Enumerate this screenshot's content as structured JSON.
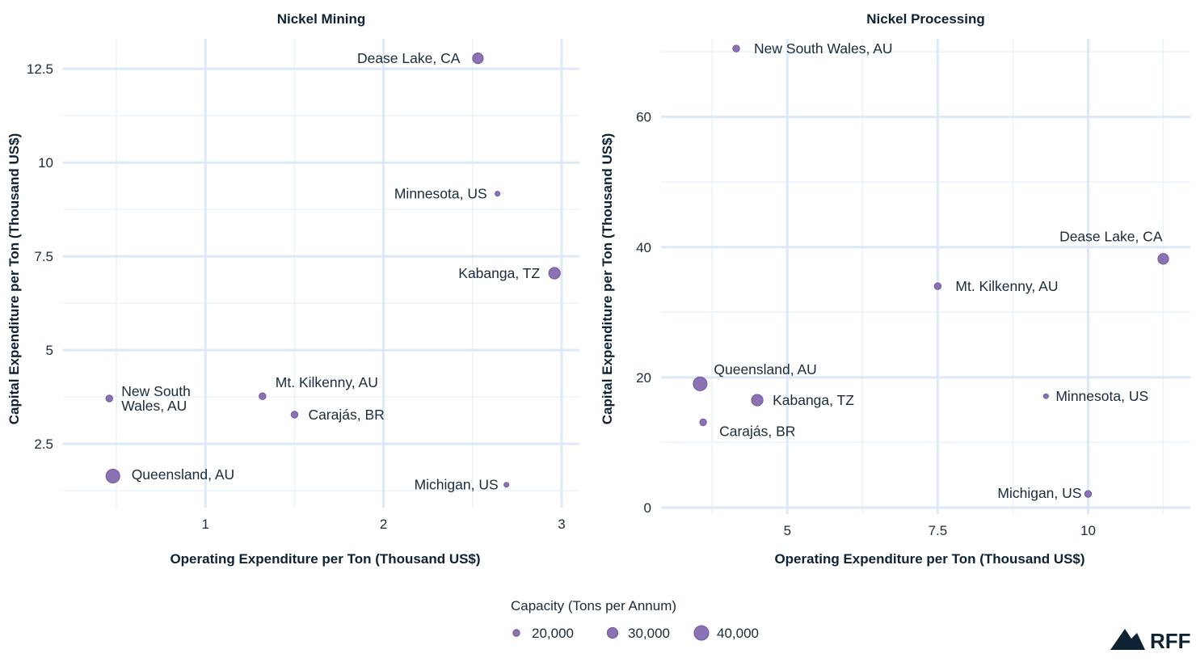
{
  "chart_data": [
    {
      "type": "scatter",
      "title": "Nickel Mining",
      "xlabel": "Operating Expenditure per Ton (Thousand US$)",
      "ylabel": "Capital Expenditure per Ton (Thousand US$)",
      "xlim": [
        0.2,
        3.1
      ],
      "ylim": [
        0.8,
        13.3
      ],
      "xticks": [
        1,
        2,
        3
      ],
      "xtick_labels": [
        "1",
        "2",
        "3"
      ],
      "yticks": [
        2.5,
        5,
        7.5,
        10,
        12.5
      ],
      "ytick_labels": [
        "2.5",
        "5",
        "7.5",
        "10",
        "12.5"
      ],
      "grid": true,
      "points": [
        {
          "label": [
            "Dease Lake, CA"
          ],
          "x": 2.53,
          "y": 12.78,
          "capacity": 30000
        },
        {
          "label": [
            "Minnesota, US"
          ],
          "x": 2.64,
          "y": 9.17,
          "capacity": 15000
        },
        {
          "label": [
            "Kabanga, TZ"
          ],
          "x": 2.96,
          "y": 7.05,
          "capacity": 32000
        },
        {
          "label": [
            "New South",
            "Wales, AU"
          ],
          "x": 0.46,
          "y": 3.71,
          "capacity": 20000
        },
        {
          "label": [
            "Mt. Kilkenny, AU"
          ],
          "x": 1.32,
          "y": 3.77,
          "capacity": 20000
        },
        {
          "label": [
            "Carajás, BR"
          ],
          "x": 1.5,
          "y": 3.28,
          "capacity": 20000
        },
        {
          "label": [
            "Queensland, AU"
          ],
          "x": 0.48,
          "y": 1.64,
          "capacity": 38000
        },
        {
          "label": [
            "Michigan, US"
          ],
          "x": 2.69,
          "y": 1.41,
          "capacity": 15000
        }
      ]
    },
    {
      "type": "scatter",
      "title": "Nickel Processing",
      "xlabel": "Operating Expenditure per Ton (Thousand US$)",
      "ylabel": "Capital Expenditure per Ton (Thousand US$)",
      "xlim": [
        2.9,
        11.7
      ],
      "ylim": [
        -1,
        72
      ],
      "xticks": [
        5,
        7.5,
        10
      ],
      "xtick_labels": [
        "5",
        "7.5",
        "10"
      ],
      "yticks": [
        0,
        20,
        40,
        60
      ],
      "ytick_labels": [
        "0",
        "20",
        "40",
        "60"
      ],
      "grid": true,
      "points": [
        {
          "label": [
            "New South Wales, AU"
          ],
          "x": 4.15,
          "y": 70.5,
          "capacity": 20000
        },
        {
          "label": [
            "Dease Lake, CA"
          ],
          "x": 11.25,
          "y": 38.2,
          "capacity": 30000
        },
        {
          "label": [
            "Mt. Kilkenny, AU"
          ],
          "x": 7.5,
          "y": 34.0,
          "capacity": 20000
        },
        {
          "label": [
            "Queensland, AU"
          ],
          "x": 3.55,
          "y": 19.0,
          "capacity": 38000
        },
        {
          "label": [
            "Kabanga, TZ"
          ],
          "x": 4.5,
          "y": 16.5,
          "capacity": 32000
        },
        {
          "label": [
            "Minnesota, US"
          ],
          "x": 9.3,
          "y": 17.1,
          "capacity": 15000
        },
        {
          "label": [
            "Carajás, BR"
          ],
          "x": 3.6,
          "y": 13.1,
          "capacity": 20000
        },
        {
          "label": [
            "Michigan, US"
          ],
          "x": 10.0,
          "y": 2.1,
          "capacity": 20000
        }
      ]
    }
  ],
  "legend": {
    "title": "Capacity (Tons per Annum)",
    "placement": "bottom",
    "items": [
      {
        "label": "20,000",
        "capacity": 20000
      },
      {
        "label": "30,000",
        "capacity": 30000
      },
      {
        "label": "40,000",
        "capacity": 40000
      }
    ]
  },
  "colors": {
    "point_fill": "#8b72b3",
    "point_stroke": "#6f58a0",
    "grid_major": "#dde9f7",
    "grid_minor": "#eaf2fb",
    "logo": "#0e2233"
  },
  "logo": {
    "text": "RFF"
  }
}
